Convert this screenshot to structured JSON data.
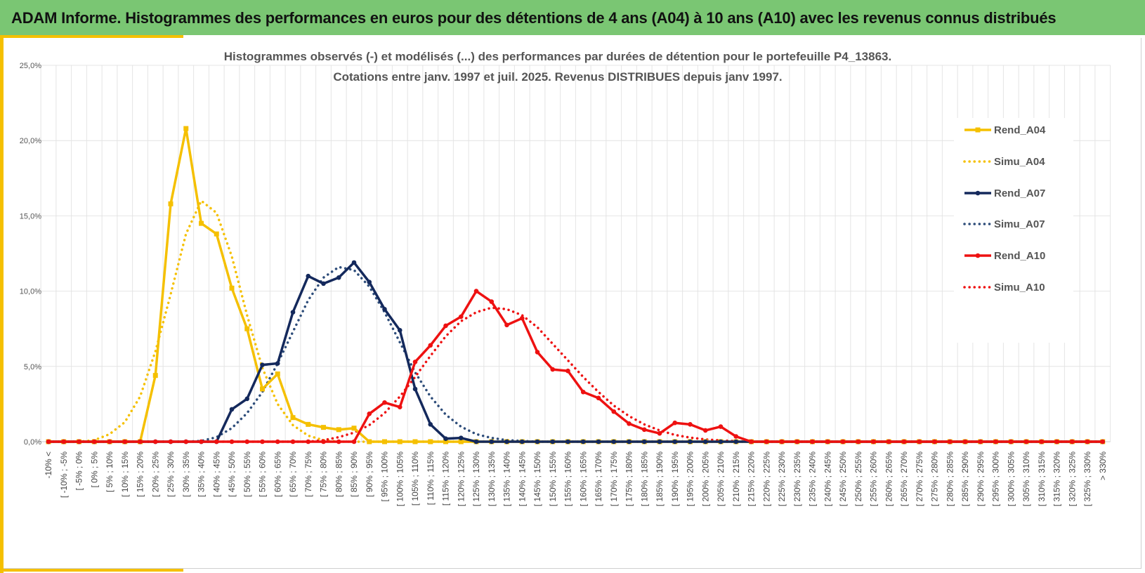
{
  "header": {
    "title": "ADAM Informe. Histogrammes des performances en euros pour des détentions de 4 ans (A04) à 10 ans (A10) avec les revenus connus distribués"
  },
  "colors": {
    "banner": "#7ac673",
    "accent": "#f5c000",
    "a04": "#f5c000",
    "a07": "#14295c",
    "simu_a07": "#2e4d7a",
    "a10": "#ee1111"
  },
  "chart_data": {
    "type": "line",
    "title": [
      "Histogrammes observés (-) et modélisés (...) des performances par durées de détention pour le portefeuille P4_13863.",
      "Cotations entre janv. 1997 et juil. 2025. Revenus DISTRIBUES depuis janv 1997."
    ],
    "xlabel": "",
    "ylabel": "",
    "ylim": [
      0,
      25
    ],
    "yticks": [
      "0,0%",
      "5,0%",
      "10,0%",
      "15,0%",
      "20,0%",
      "25,0%"
    ],
    "grid": true,
    "legend_position": "right",
    "categories": [
      "-10% <",
      "[ -10% ; -5%",
      "[ -5% ; 0%",
      "[ 0% ; 5%",
      "[ 5% ; 10%",
      "[ 10% ; 15%",
      "[ 15% ; 20%",
      "[ 20% ; 25%",
      "[ 25% ; 30%",
      "[ 30% ; 35%",
      "[ 35% ; 40%",
      "[ 40% ; 45%",
      "[ 45% ; 50%",
      "[ 50% ; 55%",
      "[ 55% ; 60%",
      "[ 60% ; 65%",
      "[ 65% ; 70%",
      "[ 70% ; 75%",
      "[ 75% ; 80%",
      "[ 80% ; 85%",
      "[ 85% ; 90%",
      "[ 90% ; 95%",
      "[ 95% ; 100%",
      "[ 100% ; 105%",
      "[ 105% ; 110%",
      "[ 110% ; 115%",
      "[ 115% ; 120%",
      "[ 120% ; 125%",
      "[ 125% ; 130%",
      "[ 130% ; 135%",
      "[ 135% ; 140%",
      "[ 140% ; 145%",
      "[ 145% ; 150%",
      "[ 150% ; 155%",
      "[ 155% ; 160%",
      "[ 160% ; 165%",
      "[ 165% ; 170%",
      "[ 170% ; 175%",
      "[ 175% ; 180%",
      "[ 180% ; 185%",
      "[ 185% ; 190%",
      "[ 190% ; 195%",
      "[ 195% ; 200%",
      "[ 200% ; 205%",
      "[ 205% ; 210%",
      "[ 210% ; 215%",
      "[ 215% ; 220%",
      "[ 220% ; 225%",
      "[ 225% ; 230%",
      "[ 230% ; 235%",
      "[ 235% ; 240%",
      "[ 240% ; 245%",
      "[ 245% ; 250%",
      "[ 250% ; 255%",
      "[ 255% ; 260%",
      "[ 260% ; 265%",
      "[ 265% ; 270%",
      "[ 270% ; 275%",
      "[ 275% ; 280%",
      "[ 280% ; 285%",
      "[ 285% ; 290%",
      "[ 290% ; 295%",
      "[ 295% ; 300%",
      "[ 300% ; 305%",
      "[ 305% ; 310%",
      "[ 310% ; 315%",
      "[ 315% ; 320%",
      "[ 320% ; 325%",
      "[ 325% ; 330%",
      "> 330%"
    ],
    "series": [
      {
        "name": "Rend_A04",
        "style": "solid",
        "color": "#f5c000",
        "values": [
          0,
          0,
          0,
          0,
          0,
          0,
          0,
          4.4,
          15.8,
          20.8,
          14.5,
          13.8,
          10.2,
          7.5,
          3.5,
          4.5,
          1.6,
          1.15,
          0.95,
          0.8,
          0.9,
          0,
          0,
          0,
          0,
          0,
          0,
          0,
          0,
          0,
          0,
          0,
          0,
          0,
          0,
          0,
          0,
          0,
          0,
          0,
          0,
          0,
          0,
          0,
          0,
          0,
          0,
          0,
          0,
          0,
          0,
          0,
          0,
          0,
          0,
          0,
          0,
          0,
          0,
          0,
          0,
          0,
          0,
          0,
          0,
          0,
          0,
          0,
          0,
          0
        ]
      },
      {
        "name": "Simu_A04",
        "style": "dotted",
        "color": "#f5c000",
        "values": [
          0,
          0,
          0,
          0.1,
          0.5,
          1.3,
          3.0,
          6.0,
          9.8,
          13.8,
          16.0,
          15.2,
          12.3,
          8.4,
          4.9,
          2.5,
          1.1,
          0.4,
          0.1,
          0,
          0,
          0,
          0,
          0,
          0,
          0,
          0,
          0,
          0,
          0,
          0,
          0,
          0,
          0,
          0,
          0,
          0,
          0,
          0,
          0,
          0,
          0,
          0,
          0,
          0,
          0,
          0,
          0,
          0,
          0,
          0,
          0,
          0,
          0,
          0,
          0,
          0,
          0,
          0,
          0,
          0,
          0,
          0,
          0,
          0,
          0,
          0,
          0,
          0,
          0
        ]
      },
      {
        "name": "Rend_A07",
        "style": "solid",
        "color": "#14295c",
        "values": [
          0,
          0,
          0,
          0,
          0,
          0,
          0,
          0,
          0,
          0,
          0,
          0,
          2.15,
          2.85,
          5.1,
          5.2,
          8.6,
          11.0,
          10.5,
          10.9,
          11.9,
          10.6,
          8.8,
          7.4,
          3.5,
          1.15,
          0.2,
          0.25,
          0,
          0,
          0,
          0,
          0,
          0,
          0,
          0,
          0,
          0,
          0,
          0,
          0,
          0,
          0,
          0,
          0,
          0,
          0,
          0,
          0,
          0,
          0,
          0,
          0,
          0,
          0,
          0,
          0,
          0,
          0,
          0,
          0,
          0,
          0,
          0,
          0,
          0,
          0,
          0,
          0,
          0
        ]
      },
      {
        "name": "Simu_A07",
        "style": "dotted",
        "color": "#2e4d7a",
        "values": [
          0,
          0,
          0,
          0,
          0,
          0,
          0,
          0,
          0,
          0,
          0.05,
          0.3,
          0.9,
          1.9,
          3.3,
          5.2,
          7.3,
          9.4,
          10.9,
          11.6,
          11.4,
          10.3,
          8.6,
          6.6,
          4.6,
          3.0,
          1.8,
          1.0,
          0.5,
          0.25,
          0.1,
          0.05,
          0,
          0,
          0,
          0,
          0,
          0,
          0,
          0,
          0,
          0,
          0,
          0,
          0,
          0,
          0,
          0,
          0,
          0,
          0,
          0,
          0,
          0,
          0,
          0,
          0,
          0,
          0,
          0,
          0,
          0,
          0,
          0,
          0,
          0,
          0,
          0,
          0,
          0
        ]
      },
      {
        "name": "Rend_A10",
        "style": "solid",
        "color": "#ee1111",
        "values": [
          0,
          0,
          0,
          0,
          0,
          0,
          0,
          0,
          0,
          0,
          0,
          0,
          0,
          0,
          0,
          0,
          0,
          0,
          0,
          0,
          0,
          1.85,
          2.6,
          2.3,
          5.3,
          6.4,
          7.7,
          8.3,
          10.0,
          9.3,
          7.75,
          8.2,
          5.95,
          4.8,
          4.7,
          3.3,
          2.9,
          2.0,
          1.2,
          0.8,
          0.55,
          1.25,
          1.15,
          0.75,
          1.0,
          0.35,
          0,
          0,
          0,
          0,
          0,
          0,
          0,
          0,
          0,
          0,
          0,
          0,
          0,
          0,
          0,
          0,
          0,
          0,
          0,
          0,
          0,
          0,
          0,
          0
        ]
      },
      {
        "name": "Simu_A10",
        "style": "dotted",
        "color": "#ee1111",
        "values": [
          0,
          0,
          0,
          0,
          0,
          0,
          0,
          0,
          0,
          0,
          0,
          0,
          0,
          0,
          0,
          0,
          0,
          0,
          0.1,
          0.3,
          0.6,
          1.1,
          1.9,
          3.0,
          4.3,
          5.7,
          7.0,
          8.0,
          8.6,
          8.9,
          8.8,
          8.4,
          7.6,
          6.5,
          5.4,
          4.3,
          3.3,
          2.4,
          1.7,
          1.15,
          0.75,
          0.45,
          0.27,
          0.15,
          0.08,
          0.04,
          0,
          0,
          0,
          0,
          0,
          0,
          0,
          0,
          0,
          0,
          0,
          0,
          0,
          0,
          0,
          0,
          0,
          0,
          0,
          0,
          0,
          0,
          0,
          0
        ]
      }
    ]
  }
}
